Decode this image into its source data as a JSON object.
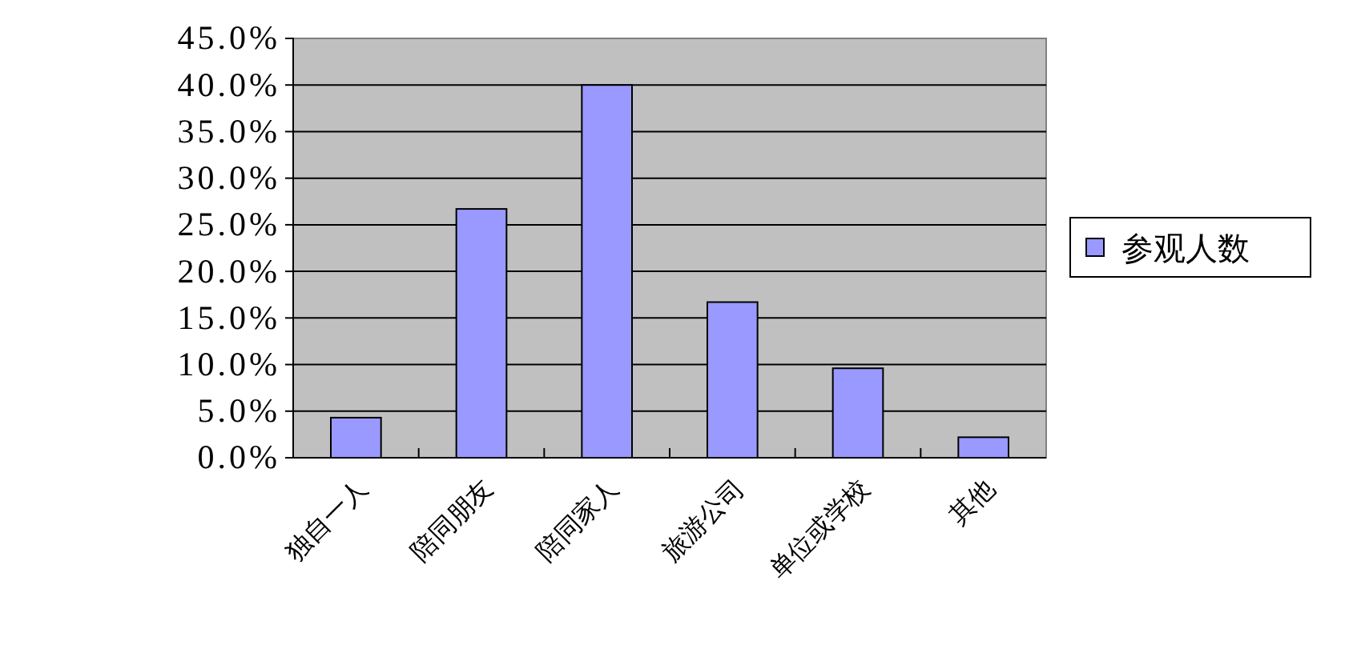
{
  "chart_data": {
    "type": "bar",
    "categories": [
      "独自一人",
      "陪同朋友",
      "陪同家人",
      "旅游公司",
      "单位或学校",
      "其他"
    ],
    "series": [
      {
        "name": "参观人数",
        "color": "#9999ff",
        "values": [
          4.3,
          26.7,
          40.0,
          16.7,
          9.6,
          2.2
        ]
      }
    ],
    "ylim": [
      0,
      45
    ],
    "yticks": [
      {
        "value": 0,
        "label": "0.0%"
      },
      {
        "value": 5,
        "label": "5.0%"
      },
      {
        "value": 10,
        "label": "10.0%"
      },
      {
        "value": 15,
        "label": "15.0%"
      },
      {
        "value": 20,
        "label": "20.0%"
      },
      {
        "value": 25,
        "label": "25.0%"
      },
      {
        "value": 30,
        "label": "30.0%"
      },
      {
        "value": 35,
        "label": "35.0%"
      },
      {
        "value": 40,
        "label": "40.0%"
      },
      {
        "value": 45,
        "label": "45.0%"
      }
    ],
    "grid": "y",
    "legend": "right"
  }
}
